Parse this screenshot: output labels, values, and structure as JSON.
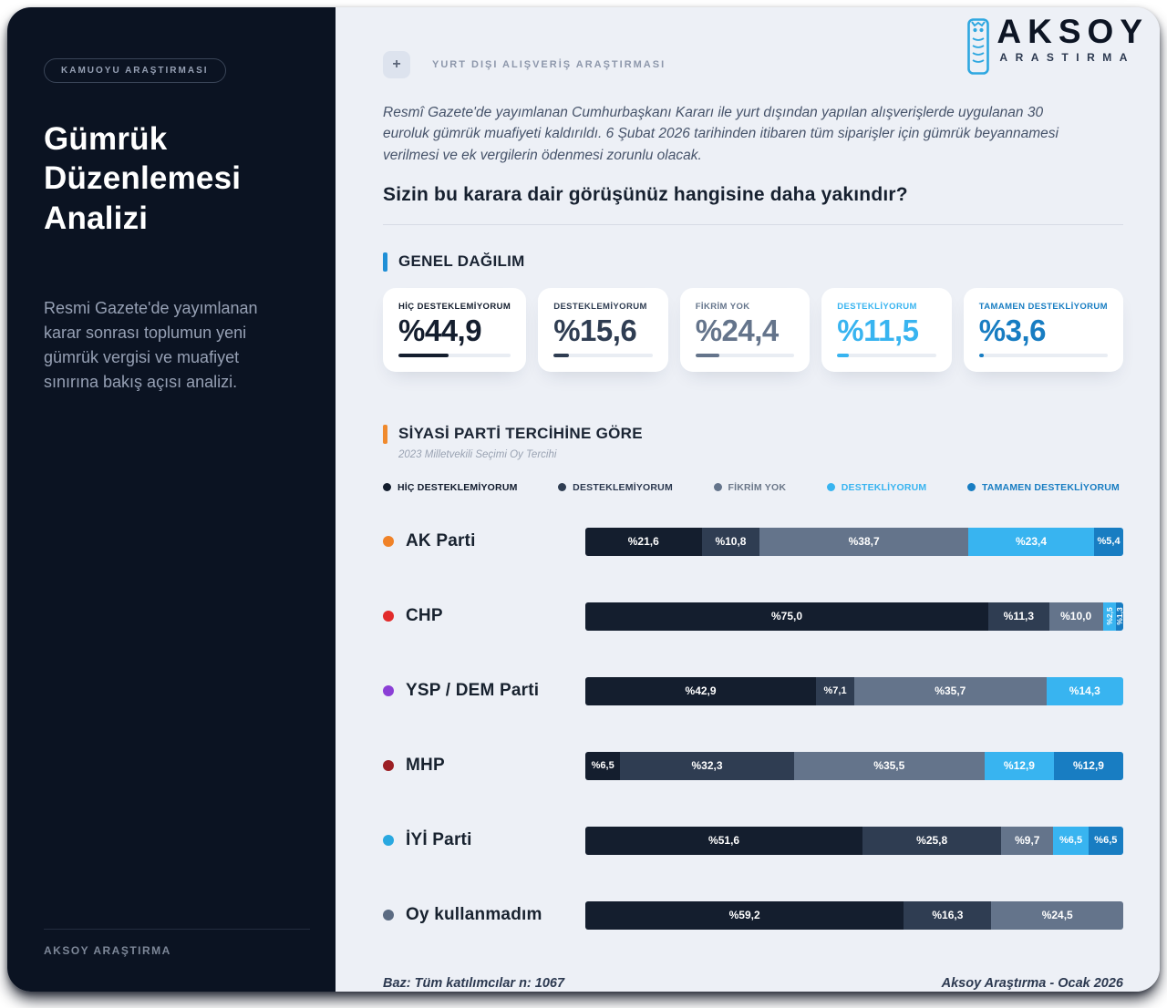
{
  "sidebar": {
    "badge": "KAMUOYU ARAŞTIRMASI",
    "title": "Gümrük Düzenlemesi Analizi",
    "description": "Resmi Gazete'de yayımlanan karar sonrası toplumun yeni gümrük vergisi ve muafiyet sınırına bakış açısı analizi.",
    "footer": "AKSOY ARAŞTIRMA"
  },
  "logo": {
    "name": "AKSOY",
    "sub": "ARASTIRMA",
    "icon": "owl-column-icon",
    "icon_color": "#2ea7e0"
  },
  "header": {
    "plus": "+",
    "tag": "YURT DIŞI ALIŞVERİŞ ARAŞTIRMASI",
    "intro": "Resmî Gazete'de yayımlanan Cumhurbaşkanı Kararı ile yurt dışından yapılan alışverişlerde uygulanan 30 euroluk gümrük muafiyeti kaldırıldı. 6 Şubat 2026 tarihinden itibaren tüm siparişler için gümrük beyannamesi verilmesi ve ek vergilerin ödenmesi zorunlu olacak.",
    "question": "Sizin bu karara dair görüşünüz hangisine daha yakındır?"
  },
  "colors": {
    "series": [
      "#141e2e",
      "#2f3d52",
      "#64748b",
      "#38b4f0",
      "#187dc2"
    ],
    "general_marker": "#1f8fd6",
    "party_marker": "#f08a2d"
  },
  "general": {
    "heading": "GENEL DAĞILIM",
    "cards": [
      {
        "label": "HİÇ DESTEKLEMİYORUM",
        "value": 44.9,
        "value_label": "%44,9",
        "color_index": 0
      },
      {
        "label": "DESTEKLEMİYORUM",
        "value": 15.6,
        "value_label": "%15,6",
        "color_index": 1
      },
      {
        "label": "FİKRİM YOK",
        "value": 24.4,
        "value_label": "%24,4",
        "color_index": 2
      },
      {
        "label": "DESTEKLİYORUM",
        "value": 11.5,
        "value_label": "%11,5",
        "color_index": 3
      },
      {
        "label": "TAMAMEN DESTEKLİYORUM",
        "value": 3.6,
        "value_label": "%3,6",
        "color_index": 4
      }
    ]
  },
  "party_section": {
    "heading": "SİYASİ PARTİ TERCİHİNE GÖRE",
    "subtitle": "2023 Milletvekili Seçimi Oy Tercihi",
    "legend": [
      {
        "label": "HİÇ DESTEKLEMİYORUM",
        "dot": "#141e2e",
        "text": "#101a2c"
      },
      {
        "label": "DESTEKLEMİYORUM",
        "dot": "#2f3d52",
        "text": "#2c3950"
      },
      {
        "label": "FİKRİM YOK",
        "dot": "#64748b",
        "text": "#6b7789"
      },
      {
        "label": "DESTEKLİYORUM",
        "dot": "#38b4f0",
        "text": "#38b4f0"
      },
      {
        "label": "TAMAMEN DESTEKLİYORUM",
        "dot": "#187dc2",
        "text": "#187dc2"
      }
    ],
    "parties": [
      {
        "name": "AK Parti",
        "dot": "#f08228",
        "segments": [
          {
            "v": 21.6,
            "label": "%21,6"
          },
          {
            "v": 10.8,
            "label": "%10,8"
          },
          {
            "v": 38.7,
            "label": "%38,7"
          },
          {
            "v": 23.4,
            "label": "%23,4"
          },
          {
            "v": 5.4,
            "label": "%5,4"
          }
        ]
      },
      {
        "name": "CHP",
        "dot": "#e22b2b",
        "segments": [
          {
            "v": 75.0,
            "label": "%75,0"
          },
          {
            "v": 11.3,
            "label": "%11,3"
          },
          {
            "v": 10.0,
            "label": "%10,0"
          },
          {
            "v": 2.5,
            "label": "%2,5",
            "rot": true
          },
          {
            "v": 1.3,
            "label": "%1,3",
            "rot": true
          }
        ]
      },
      {
        "name": "YSP / DEM Parti",
        "dot": "#8b3fd6",
        "segments": [
          {
            "v": 42.9,
            "label": "%42,9"
          },
          {
            "v": 7.1,
            "label": "%7,1"
          },
          {
            "v": 35.7,
            "label": "%35,7"
          },
          {
            "v": 14.3,
            "label": "%14,3"
          },
          {
            "v": 0,
            "label": ""
          }
        ]
      },
      {
        "name": "MHP",
        "dot": "#9c1f24",
        "segments": [
          {
            "v": 6.5,
            "label": "%6,5"
          },
          {
            "v": 32.3,
            "label": "%32,3"
          },
          {
            "v": 35.5,
            "label": "%35,5"
          },
          {
            "v": 12.9,
            "label": "%12,9"
          },
          {
            "v": 12.9,
            "label": "%12,9"
          }
        ]
      },
      {
        "name": "İYİ Parti",
        "dot": "#29a8e0",
        "segments": [
          {
            "v": 51.6,
            "label": "%51,6"
          },
          {
            "v": 25.8,
            "label": "%25,8"
          },
          {
            "v": 9.7,
            "label": "%9,7"
          },
          {
            "v": 6.5,
            "label": "%6,5"
          },
          {
            "v": 6.5,
            "label": "%6,5"
          }
        ]
      },
      {
        "name": "Oy kullanmadım",
        "dot": "#5b6b82",
        "segments": [
          {
            "v": 59.2,
            "label": "%59,2"
          },
          {
            "v": 16.3,
            "label": "%16,3"
          },
          {
            "v": 24.5,
            "label": "%24,5"
          },
          {
            "v": 0,
            "label": ""
          },
          {
            "v": 0,
            "label": ""
          }
        ]
      }
    ]
  },
  "footer": {
    "left": "Baz: Tüm katılımcılar n: 1067",
    "right": "Aksoy Araştırma - Ocak 2026"
  },
  "chart_data": [
    {
      "type": "bar",
      "title": "GENEL DAĞILIM",
      "categories": [
        "HİÇ DESTEKLEMİYORUM",
        "DESTEKLEMİYORUM",
        "FİKRİM YOK",
        "DESTEKLİYORUM",
        "TAMAMEN DESTEKLİYORUM"
      ],
      "values": [
        44.9,
        15.6,
        24.4,
        11.5,
        3.6
      ],
      "unit": "%",
      "ylim": [
        0,
        100
      ]
    },
    {
      "type": "bar",
      "subtype": "stacked-horizontal",
      "title": "SİYASİ PARTİ TERCİHİNE GÖRE",
      "subtitle": "2023 Milletvekili Seçimi Oy Tercihi",
      "categories": [
        "AK Parti",
        "CHP",
        "YSP / DEM Parti",
        "MHP",
        "İYİ Parti",
        "Oy kullanmadım"
      ],
      "series": [
        {
          "name": "HİÇ DESTEKLEMİYORUM",
          "values": [
            21.6,
            75.0,
            42.9,
            6.5,
            51.6,
            59.2
          ]
        },
        {
          "name": "DESTEKLEMİYORUM",
          "values": [
            10.8,
            11.3,
            7.1,
            32.3,
            25.8,
            16.3
          ]
        },
        {
          "name": "FİKRİM YOK",
          "values": [
            38.7,
            10.0,
            35.7,
            35.5,
            9.7,
            24.5
          ]
        },
        {
          "name": "DESTEKLİYORUM",
          "values": [
            23.4,
            2.5,
            14.3,
            12.9,
            6.5,
            0
          ]
        },
        {
          "name": "TAMAMEN DESTEKLİYORUM",
          "values": [
            5.4,
            1.3,
            0,
            12.9,
            6.5,
            0
          ]
        }
      ],
      "xlim": [
        0,
        100
      ],
      "unit": "%",
      "legend_position": "top",
      "grid": false
    }
  ]
}
